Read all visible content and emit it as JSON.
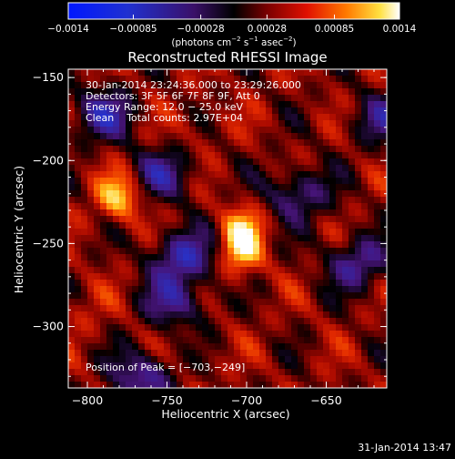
{
  "chart_data": {
    "type": "heatmap",
    "title": "Reconstructed RHESSI Image",
    "xlabel": "Heliocentric X (arcsec)",
    "ylabel": "Heliocentric Y (arcsec)",
    "xlim": [
      -812,
      -612
    ],
    "ylim": [
      -337,
      -145
    ],
    "xticks": [
      -800,
      -750,
      -700,
      -650
    ],
    "xtick_labels": [
      "−800",
      "−750",
      "−700",
      "−650"
    ],
    "yticks": [
      -300,
      -250,
      -200,
      -150
    ],
    "ytick_labels": [
      "−300",
      "−250",
      "−200",
      "−150"
    ],
    "colorbar": {
      "label": "(photons cm",
      "label_sup1": "−2",
      "label_mid1": " s",
      "label_sup2": "−1",
      "label_mid2": " asec",
      "label_sup3": "−2",
      "label_end": ")",
      "range": [
        -0.0014,
        0.0014
      ],
      "ticks": [
        -0.0014,
        -0.00085,
        -0.00028,
        0.00028,
        0.00085,
        0.0014
      ],
      "tick_labels": [
        "−0.0014",
        "−0.00085",
        "−0.00028",
        "0.00028",
        "0.00085",
        "0.0014"
      ]
    },
    "annotations": [
      "30-Jan-2014 23:24:36.000 to 23:29:26.000",
      "Detectors: 3F 5F 6F 7F 8F 9F, Att 0",
      "Energy Range: 12.0 − 25.0 keV",
      "Clean    Total counts: 2.97E+04"
    ],
    "peak_label": "Position of Peak = [−703,−249]",
    "peak": [
      -703,
      -249
    ],
    "sources": [
      {
        "x": -703,
        "y": -249,
        "value": 0.0014
      },
      {
        "x": -780,
        "y": -222,
        "value": 0.0011
      },
      {
        "x": -735,
        "y": -180,
        "value": 0.00045
      },
      {
        "x": -800,
        "y": -292,
        "value": 0.00045
      },
      {
        "x": -735,
        "y": -320,
        "value": 0.0004
      }
    ],
    "negative_regions": [
      {
        "x": -790,
        "y": -172,
        "value": -0.0005
      },
      {
        "x": -752,
        "y": -208,
        "value": -0.0004
      },
      {
        "x": -740,
        "y": -258,
        "value": -0.0006
      },
      {
        "x": -745,
        "y": -285,
        "value": -0.0004
      },
      {
        "x": -668,
        "y": -220,
        "value": -0.0004
      },
      {
        "x": -630,
        "y": -262,
        "value": -0.00045
      },
      {
        "x": -765,
        "y": -330,
        "value": -0.0005
      },
      {
        "x": -615,
        "y": -175,
        "value": -0.0003
      }
    ],
    "background": 0.0003,
    "grid": false,
    "colors": {
      "low": "#0000ff",
      "zero": "#000000",
      "mid": "#ff2000",
      "high": "#ffffff"
    }
  },
  "footer": {
    "timestamp": "31-Jan-2014 13:47"
  }
}
